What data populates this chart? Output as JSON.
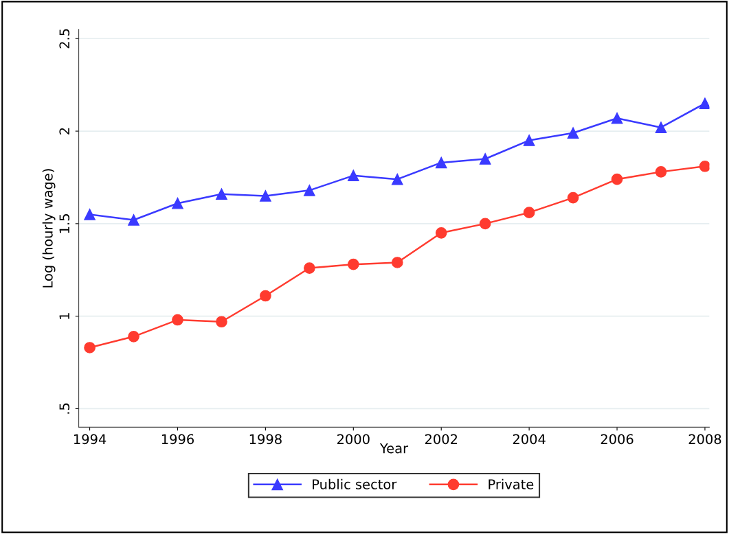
{
  "chart_data": {
    "type": "line",
    "xlabel": "Year",
    "ylabel": "Log (hourly wage)",
    "x": [
      1994,
      1995,
      1996,
      1997,
      1998,
      1999,
      2000,
      2001,
      2002,
      2003,
      2004,
      2005,
      2006,
      2007,
      2008
    ],
    "series": [
      {
        "name": "Public sector",
        "color": "#3a3aff",
        "marker": "triangle",
        "values": [
          1.55,
          1.52,
          1.61,
          1.66,
          1.65,
          1.68,
          1.76,
          1.74,
          1.83,
          1.85,
          1.95,
          1.99,
          2.07,
          2.02,
          2.15
        ]
      },
      {
        "name": "Private",
        "color": "#ff3b2f",
        "marker": "circle",
        "values": [
          0.83,
          0.89,
          0.98,
          0.97,
          1.11,
          1.26,
          1.28,
          1.29,
          1.45,
          1.5,
          1.56,
          1.64,
          1.74,
          1.78,
          1.81
        ]
      }
    ],
    "xlim": [
      1993.75,
      2008.1
    ],
    "xticks": [
      1994,
      1996,
      1998,
      2000,
      2002,
      2004,
      2006,
      2008
    ],
    "ylim": [
      0.4,
      2.55
    ],
    "yticks": [
      {
        "value": 0.5,
        "label": ".5"
      },
      1,
      1.5,
      2,
      2.5
    ],
    "grid": "y",
    "legend": "bottom",
    "line_style": "solid"
  }
}
